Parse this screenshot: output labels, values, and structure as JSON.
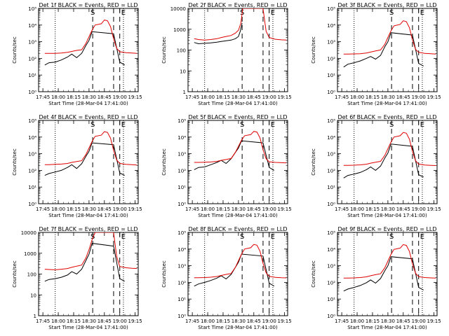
{
  "figure": {
    "colors": {
      "events": "#000000",
      "lld": "#e00000",
      "axes": "#000000"
    },
    "xlabel": "Start Time (28-Mar-04 17:41:00)",
    "ylabel": "Counts/sec",
    "xticks": [
      {
        "t": 17.75,
        "label": "17:45"
      },
      {
        "t": 18.0,
        "label": "18:00"
      },
      {
        "t": 18.25,
        "label": "18:15"
      },
      {
        "t": 18.5,
        "label": "18:30"
      },
      {
        "t": 18.75,
        "label": "18:45"
      },
      {
        "t": 19.0,
        "label": "19:00"
      },
      {
        "t": 19.25,
        "label": "19:15"
      }
    ],
    "markers": {
      "dotted": [
        17.95,
        19.06
      ],
      "dashed": [
        18.56,
        18.9,
        19.0
      ],
      "labels": [
        {
          "t": 18.56,
          "text": "S"
        },
        {
          "t": 19.06,
          "text": "E"
        }
      ]
    }
  },
  "chart_data": [
    {
      "type": "line",
      "title": "Det 1f BLACK = Events, RED = LLD",
      "ylim": [
        1,
        100000
      ],
      "yticks": [
        {
          "v": 1,
          "label": "10⁰"
        },
        {
          "v": 10,
          "label": "10¹"
        },
        {
          "v": 100,
          "label": "10²"
        },
        {
          "v": 1000,
          "label": "10³"
        },
        {
          "v": 10000,
          "label": "10⁴"
        },
        {
          "v": 100000,
          "label": "10⁵"
        }
      ],
      "series": [
        {
          "role": "events",
          "x": [
            17.78,
            17.85,
            17.95,
            18.05,
            18.15,
            18.22,
            18.3,
            18.38,
            18.45,
            18.5,
            18.55,
            18.9,
            19.0,
            19.08
          ],
          "y": [
            40,
            55,
            60,
            80,
            120,
            180,
            110,
            200,
            600,
            1200,
            4000,
            3000,
            60,
            40
          ]
        },
        {
          "role": "lld",
          "x": [
            17.78,
            17.85,
            17.95,
            18.05,
            18.15,
            18.22,
            18.3,
            18.38,
            18.45,
            18.5,
            18.55,
            18.6,
            18.7,
            18.75,
            18.8,
            18.85,
            18.9,
            18.95,
            19.0,
            19.1,
            19.2,
            19.28
          ],
          "y": [
            200,
            200,
            200,
            210,
            230,
            260,
            300,
            330,
            800,
            2000,
            5000,
            10000,
            12000,
            20000,
            18000,
            8000,
            1500,
            400,
            250,
            220,
            210,
            200
          ]
        }
      ]
    },
    {
      "type": "line",
      "title": "Det 2f BLACK = Events, RED = LLD",
      "ylim": [
        1,
        10000
      ],
      "yticks": [
        {
          "v": 1,
          "label": "1"
        },
        {
          "v": 10,
          "label": "10"
        },
        {
          "v": 100,
          "label": "100"
        },
        {
          "v": 1000,
          "label": "1000"
        },
        {
          "v": 10000,
          "label": "10000"
        }
      ],
      "series": [
        {
          "role": "events",
          "x": [
            17.78,
            17.85,
            17.95,
            18.05,
            18.15,
            18.22,
            18.3,
            18.38,
            18.45,
            18.5,
            18.53,
            18.56
          ],
          "y": [
            230,
            200,
            210,
            220,
            240,
            260,
            280,
            300,
            350,
            450,
            800,
            2000
          ]
        },
        {
          "role": "lld",
          "x": [
            17.78,
            17.85,
            17.95,
            18.05,
            18.15,
            18.22,
            18.3,
            18.38,
            18.45,
            18.5,
            18.54,
            18.57,
            18.9,
            18.95,
            19.0,
            19.1,
            19.2,
            19.28
          ],
          "y": [
            350,
            320,
            300,
            320,
            350,
            400,
            450,
            500,
            650,
            900,
            2000,
            10000,
            10000,
            800,
            400,
            330,
            310,
            300
          ]
        }
      ]
    },
    {
      "type": "line",
      "title": "Det 3f BLACK = Events, RED = LLD",
      "ylim": [
        1,
        100000
      ],
      "yticks": [
        {
          "v": 1,
          "label": "10⁰"
        },
        {
          "v": 10,
          "label": "10¹"
        },
        {
          "v": 100,
          "label": "10²"
        },
        {
          "v": 1000,
          "label": "10³"
        },
        {
          "v": 10000,
          "label": "10⁴"
        },
        {
          "v": 100000,
          "label": "10⁵"
        }
      ],
      "series": [
        {
          "role": "events",
          "x": [
            17.78,
            17.85,
            17.95,
            18.05,
            18.15,
            18.22,
            18.3,
            18.38,
            18.45,
            18.5,
            18.55,
            18.9,
            19.0,
            19.08
          ],
          "y": [
            30,
            45,
            55,
            70,
            100,
            130,
            90,
            150,
            500,
            1000,
            3500,
            2500,
            50,
            35
          ]
        },
        {
          "role": "lld",
          "x": [
            17.78,
            17.85,
            17.95,
            18.05,
            18.15,
            18.22,
            18.3,
            18.38,
            18.45,
            18.5,
            18.55,
            18.6,
            18.7,
            18.75,
            18.8,
            18.85,
            18.9,
            18.95,
            19.0,
            19.1,
            19.2,
            19.28
          ],
          "y": [
            180,
            180,
            185,
            190,
            210,
            240,
            280,
            320,
            700,
            1800,
            4500,
            9000,
            11000,
            18000,
            16000,
            7000,
            1300,
            350,
            230,
            200,
            190,
            180
          ]
        }
      ]
    },
    {
      "type": "line",
      "title": "Det 4f BLACK = Events, RED = LLD",
      "ylim": [
        1,
        100000
      ],
      "yticks": [
        {
          "v": 1,
          "label": "10⁰"
        },
        {
          "v": 10,
          "label": "10¹"
        },
        {
          "v": 100,
          "label": "10²"
        },
        {
          "v": 1000,
          "label": "10³"
        },
        {
          "v": 10000,
          "label": "10⁴"
        },
        {
          "v": 100000,
          "label": "10⁵"
        }
      ],
      "series": [
        {
          "role": "events",
          "x": [
            17.78,
            17.85,
            17.95,
            18.05,
            18.15,
            18.22,
            18.3,
            18.38,
            18.45,
            18.5,
            18.55,
            18.9,
            19.0,
            19.08
          ],
          "y": [
            50,
            65,
            80,
            100,
            150,
            220,
            130,
            250,
            700,
            1400,
            4500,
            3500,
            70,
            50
          ]
        },
        {
          "role": "lld",
          "x": [
            17.78,
            17.85,
            17.95,
            18.05,
            18.15,
            18.22,
            18.3,
            18.38,
            18.45,
            18.5,
            18.55,
            18.6,
            18.7,
            18.75,
            18.8,
            18.85,
            18.9,
            18.95,
            19.0,
            19.1,
            19.2,
            19.28
          ],
          "y": [
            220,
            220,
            230,
            240,
            260,
            300,
            340,
            380,
            900,
            2200,
            5500,
            11000,
            13000,
            21000,
            19000,
            8500,
            1600,
            420,
            260,
            230,
            220,
            210
          ]
        }
      ]
    },
    {
      "type": "line",
      "title": "Det 5f BLACK = Events, RED = LLD",
      "ylim": [
        1,
        100000
      ],
      "yticks": [
        {
          "v": 1,
          "label": "10⁰"
        },
        {
          "v": 10,
          "label": "10¹"
        },
        {
          "v": 100,
          "label": "10²"
        },
        {
          "v": 1000,
          "label": "10³"
        },
        {
          "v": 10000,
          "label": "10⁴"
        },
        {
          "v": 100000,
          "label": "10⁵"
        }
      ],
      "series": [
        {
          "role": "events",
          "x": [
            17.78,
            17.85,
            17.95,
            18.05,
            18.15,
            18.22,
            18.3,
            18.38,
            18.45,
            18.5,
            18.55,
            18.9,
            19.0,
            19.08
          ],
          "y": [
            110,
            150,
            160,
            220,
            300,
            400,
            260,
            500,
            1200,
            2200,
            6000,
            4500,
            150,
            100
          ]
        },
        {
          "role": "lld",
          "x": [
            17.78,
            17.85,
            17.95,
            18.05,
            18.15,
            18.22,
            18.3,
            18.38,
            18.45,
            18.5,
            18.55,
            18.6,
            18.7,
            18.75,
            18.8,
            18.85,
            18.9,
            18.95,
            19.0,
            19.1,
            19.2,
            19.28
          ],
          "y": [
            300,
            300,
            310,
            320,
            350,
            400,
            450,
            520,
            1200,
            2800,
            6500,
            12000,
            14000,
            22000,
            20000,
            9000,
            1800,
            500,
            330,
            300,
            290,
            280
          ]
        }
      ]
    },
    {
      "type": "line",
      "title": "Det 6f BLACK = Events, RED = LLD",
      "ylim": [
        1,
        100000
      ],
      "yticks": [
        {
          "v": 1,
          "label": "10⁰"
        },
        {
          "v": 10,
          "label": "10¹"
        },
        {
          "v": 100,
          "label": "10²"
        },
        {
          "v": 1000,
          "label": "10³"
        },
        {
          "v": 10000,
          "label": "10⁴"
        },
        {
          "v": 100000,
          "label": "10⁵"
        }
      ],
      "series": [
        {
          "role": "events",
          "x": [
            17.78,
            17.85,
            17.95,
            18.05,
            18.15,
            18.22,
            18.3,
            18.38,
            18.45,
            18.5,
            18.55,
            18.9,
            19.0,
            19.08
          ],
          "y": [
            35,
            50,
            60,
            75,
            110,
            160,
            100,
            180,
            550,
            1100,
            3800,
            2800,
            55,
            40
          ]
        },
        {
          "role": "lld",
          "x": [
            17.78,
            17.85,
            17.95,
            18.05,
            18.15,
            18.22,
            18.3,
            18.38,
            18.45,
            18.5,
            18.55,
            18.6,
            18.7,
            18.75,
            18.8,
            18.85,
            18.9,
            18.95,
            19.0,
            19.1,
            19.2,
            19.28
          ],
          "y": [
            200,
            200,
            205,
            215,
            235,
            270,
            310,
            350,
            800,
            2000,
            5000,
            10000,
            12000,
            19000,
            17000,
            7500,
            1400,
            380,
            240,
            210,
            200,
            195
          ]
        }
      ]
    },
    {
      "type": "line",
      "title": "Det 7f BLACK = Events, RED = LLD",
      "ylim": [
        1,
        10000
      ],
      "yticks": [
        {
          "v": 1,
          "label": "1"
        },
        {
          "v": 10,
          "label": "10"
        },
        {
          "v": 100,
          "label": "100"
        },
        {
          "v": 1000,
          "label": "1000"
        },
        {
          "v": 10000,
          "label": "10000"
        }
      ],
      "series": [
        {
          "role": "events",
          "x": [
            17.78,
            17.85,
            17.95,
            18.05,
            18.15,
            18.22,
            18.3,
            18.38,
            18.45,
            18.5,
            18.55,
            18.9,
            19.0,
            19.08
          ],
          "y": [
            45,
            55,
            60,
            70,
            90,
            130,
            100,
            170,
            450,
            900,
            3000,
            2200,
            60,
            45
          ]
        },
        {
          "role": "lld",
          "x": [
            17.78,
            17.85,
            17.95,
            18.05,
            18.15,
            18.22,
            18.3,
            18.38,
            18.45,
            18.5,
            18.55,
            18.6,
            18.9,
            18.95,
            19.0,
            19.1,
            19.2,
            19.28
          ],
          "y": [
            170,
            165,
            160,
            170,
            185,
            210,
            240,
            270,
            600,
            1500,
            4500,
            10000,
            10000,
            700,
            230,
            200,
            190,
            185
          ]
        }
      ]
    },
    {
      "type": "line",
      "title": "Det 8f BLACK = Events, RED = LLD",
      "ylim": [
        1,
        100000
      ],
      "yticks": [
        {
          "v": 1,
          "label": "10⁰"
        },
        {
          "v": 10,
          "label": "10¹"
        },
        {
          "v": 100,
          "label": "10²"
        },
        {
          "v": 1000,
          "label": "10³"
        },
        {
          "v": 10000,
          "label": "10⁴"
        },
        {
          "v": 100000,
          "label": "10⁵"
        }
      ],
      "series": [
        {
          "role": "events",
          "x": [
            17.78,
            17.85,
            17.95,
            18.05,
            18.15,
            18.22,
            18.3,
            18.38,
            18.45,
            18.5,
            18.55,
            18.9,
            19.0,
            19.08
          ],
          "y": [
            60,
            80,
            100,
            130,
            180,
            250,
            160,
            300,
            800,
            1600,
            5000,
            3800,
            90,
            60
          ]
        },
        {
          "role": "lld",
          "x": [
            17.78,
            17.85,
            17.95,
            18.05,
            18.15,
            18.22,
            18.3,
            18.38,
            18.45,
            18.5,
            18.55,
            18.6,
            18.7,
            18.75,
            18.8,
            18.85,
            18.9,
            18.95,
            19.0,
            19.1,
            19.2,
            19.28
          ],
          "y": [
            190,
            190,
            195,
            205,
            225,
            260,
            300,
            340,
            800,
            2000,
            5000,
            10000,
            12000,
            19000,
            17000,
            7500,
            1400,
            380,
            230,
            200,
            190,
            185
          ]
        }
      ]
    },
    {
      "type": "line",
      "title": "Det 9f BLACK = Events, RED = LLD",
      "ylim": [
        1,
        100000
      ],
      "yticks": [
        {
          "v": 1,
          "label": "10⁰"
        },
        {
          "v": 10,
          "label": "10¹"
        },
        {
          "v": 100,
          "label": "10²"
        },
        {
          "v": 1000,
          "label": "10³"
        },
        {
          "v": 10000,
          "label": "10⁴"
        },
        {
          "v": 100000,
          "label": "10⁵"
        }
      ],
      "series": [
        {
          "role": "events",
          "x": [
            17.78,
            17.85,
            17.95,
            18.05,
            18.15,
            18.22,
            18.3,
            18.38,
            18.45,
            18.5,
            18.55,
            18.9,
            19.0,
            19.08
          ],
          "y": [
            30,
            40,
            50,
            65,
            95,
            140,
            90,
            170,
            500,
            1000,
            3500,
            2600,
            50,
            35
          ]
        },
        {
          "role": "lld",
          "x": [
            17.78,
            17.85,
            17.95,
            18.05,
            18.15,
            18.22,
            18.3,
            18.38,
            18.45,
            18.5,
            18.55,
            18.6,
            18.7,
            18.75,
            18.8,
            18.85,
            18.9,
            18.95,
            19.0,
            19.1,
            19.2,
            19.28
          ],
          "y": [
            180,
            180,
            185,
            195,
            215,
            250,
            290,
            330,
            750,
            1900,
            4800,
            9500,
            11500,
            18500,
            16500,
            7200,
            1300,
            360,
            220,
            195,
            185,
            180
          ]
        }
      ]
    }
  ]
}
